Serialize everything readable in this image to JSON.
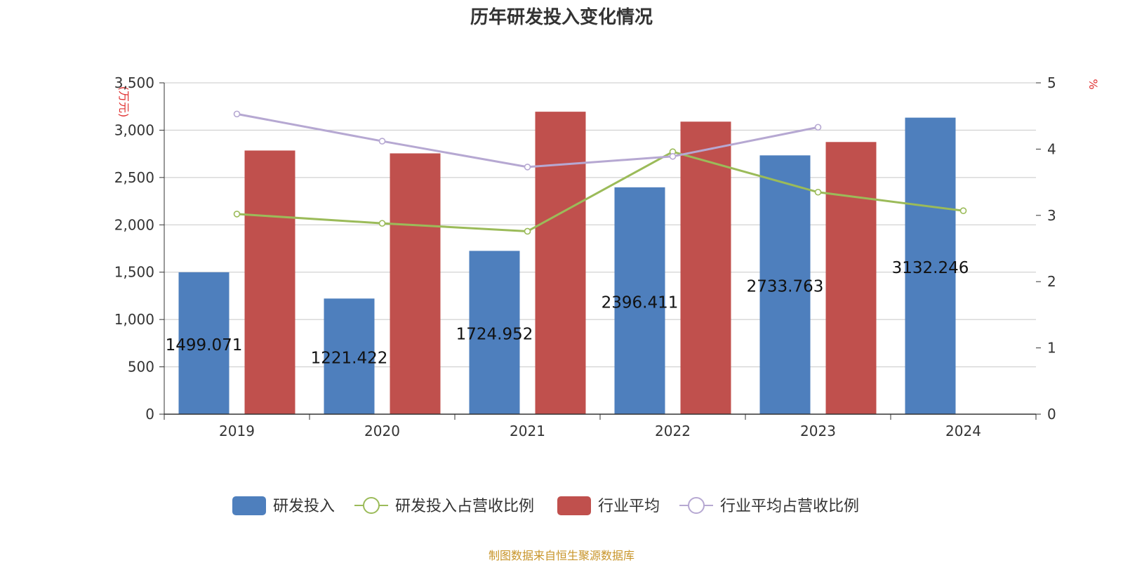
{
  "title": "历年研发投入变化情况",
  "source": "制图数据来自恒生聚源数据库",
  "chart_data": {
    "type": "bar+line",
    "title": "历年研发投入变化情况",
    "categories": [
      "2019",
      "2020",
      "2021",
      "2022",
      "2023",
      "2024"
    ],
    "y_left": {
      "unit": "(万元)",
      "range": [
        0,
        3500
      ],
      "ticks": [
        "0",
        "500",
        "1,000",
        "1,500",
        "2,000",
        "2,500",
        "3,000",
        "3,500"
      ]
    },
    "y_right": {
      "unit": "%",
      "range": [
        0,
        5
      ],
      "ticks": [
        "0",
        "1",
        "2",
        "3",
        "4",
        "5"
      ]
    },
    "grid": true,
    "legend_position": "bottom",
    "series": [
      {
        "name": "研发投入",
        "type": "bar",
        "axis": "left",
        "color": "#4e7fbd",
        "values": [
          1499.071,
          1221.422,
          1724.952,
          2396.411,
          2733.763,
          3132.246
        ],
        "labels": [
          "1499.071",
          "1221.422",
          "1724.952",
          "2396.411",
          "2733.763",
          "3132.246"
        ]
      },
      {
        "name": "研发投入占营收比例",
        "type": "line",
        "axis": "right",
        "color": "#9bbb59",
        "values": [
          3.02,
          2.88,
          2.76,
          3.96,
          3.35,
          3.07
        ]
      },
      {
        "name": "行业平均",
        "type": "bar",
        "axis": "left",
        "color": "#c0504d",
        "values": [
          2785,
          2755,
          3195,
          3090,
          2875,
          null
        ]
      },
      {
        "name": "行业平均占营收比例",
        "type": "line",
        "axis": "right",
        "color": "#b6a8d2",
        "values": [
          4.53,
          4.12,
          3.73,
          3.89,
          4.33,
          null
        ]
      }
    ]
  }
}
